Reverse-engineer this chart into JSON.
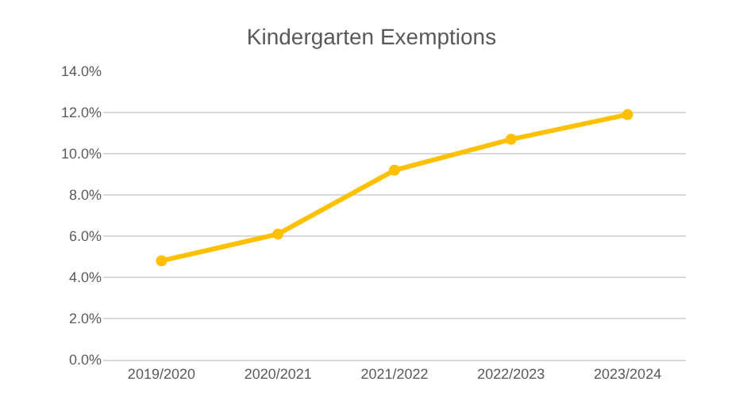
{
  "chart_data": {
    "type": "line",
    "title": "Kindergarten Exemptions",
    "categories": [
      "2019/2020",
      "2020/2021",
      "2021/2022",
      "2022/2023",
      "2023/2024"
    ],
    "series": [
      {
        "color": "#ffc000",
        "values": [
          4.8,
          6.1,
          9.2,
          10.7,
          11.9
        ]
      }
    ],
    "ylim": [
      0,
      14
    ],
    "yticks": [
      {
        "value": 0,
        "label": "0.0%"
      },
      {
        "value": 2,
        "label": "2.0%"
      },
      {
        "value": 4,
        "label": "4.0%"
      },
      {
        "value": 6,
        "label": "6.0%"
      },
      {
        "value": 8,
        "label": "8.0%"
      },
      {
        "value": 10,
        "label": "10.0%"
      },
      {
        "value": 12,
        "label": "12.0%"
      },
      {
        "value": 14,
        "label": "14.0%"
      }
    ],
    "grid": "y",
    "marker": "circle",
    "line_style": "solid",
    "legend": false
  }
}
